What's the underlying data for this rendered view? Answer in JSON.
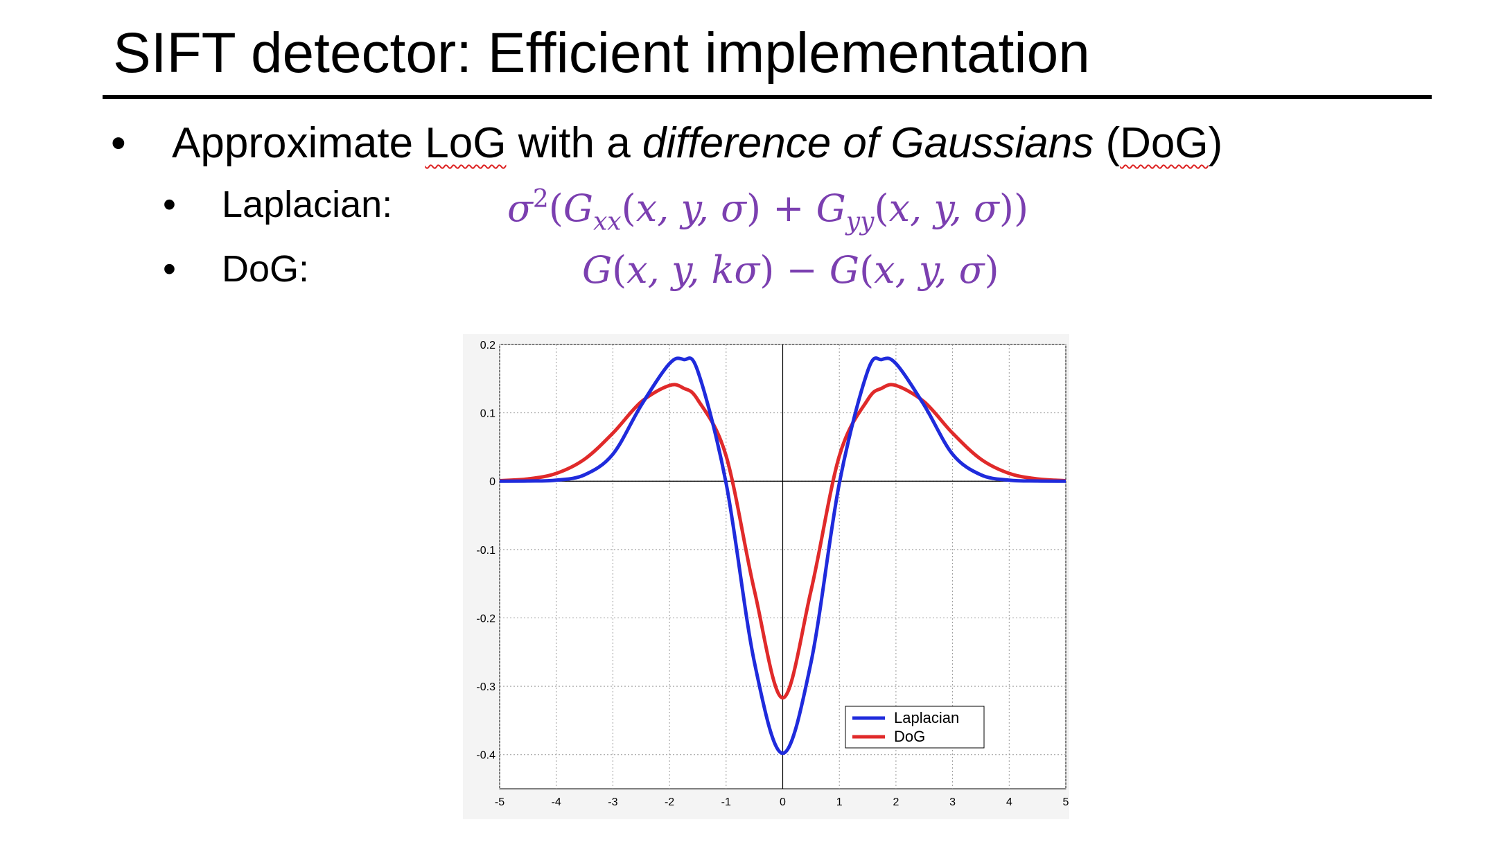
{
  "slide": {
    "title": "SIFT detector: Efficient implementation",
    "bullet_main": {
      "marker": "•",
      "prefix": "Approximate ",
      "log": "LoG",
      "middle": " with a ",
      "italic": "difference of Gaussians",
      "after": " (",
      "dog": "DoG",
      "close": ")"
    },
    "sub_bullets": [
      {
        "marker": "•",
        "label": "Laplacian:",
        "formula": "σ²(Gₓₓ(x, y, σ) + G_yy(x, y, σ))"
      },
      {
        "marker": "•",
        "label": "DoG:",
        "formula": "G(x, y, kσ) − G(x, y, σ)"
      }
    ],
    "formula_color": "#7b3fb0"
  },
  "chart_data": {
    "type": "line",
    "x": [
      -5,
      -4.5,
      -4,
      -3.5,
      -3,
      -2.5,
      -2,
      -1.75,
      -1.5,
      -1,
      -0.5,
      0,
      0.5,
      1,
      1.5,
      1.75,
      2,
      2.5,
      3,
      3.5,
      4,
      4.5,
      5
    ],
    "series": [
      {
        "name": "Laplacian",
        "color": "#1f2bdc",
        "values": [
          0.0,
          0.0002,
          0.0015,
          0.0093,
          0.0395,
          0.111,
          0.172,
          0.178,
          0.161,
          -0.003,
          -0.265,
          -0.398,
          -0.265,
          -0.003,
          0.161,
          0.178,
          0.172,
          0.111,
          0.0395,
          0.0093,
          0.0015,
          0.0002,
          0.0
        ]
      },
      {
        "name": "DoG",
        "color": "#e02a2a",
        "values": [
          0.0008,
          0.0033,
          0.0114,
          0.0322,
          0.0703,
          0.116,
          0.14,
          0.136,
          0.119,
          0.037,
          -0.16,
          -0.317,
          -0.16,
          0.037,
          0.119,
          0.136,
          0.14,
          0.116,
          0.0703,
          0.0322,
          0.0114,
          0.0033,
          0.0008
        ]
      }
    ],
    "xlim": [
      -5,
      5
    ],
    "ylim": [
      -0.45,
      0.2
    ],
    "xticks": [
      "-5",
      "-4",
      "-3",
      "-2",
      "-1",
      "0",
      "1",
      "2",
      "3",
      "4",
      "5"
    ],
    "yticks": [
      "0.2",
      "0.1",
      "0",
      "-0.1",
      "-0.2",
      "-0.3",
      "-0.4"
    ],
    "grid": true,
    "legend_position": "bottom-right"
  }
}
